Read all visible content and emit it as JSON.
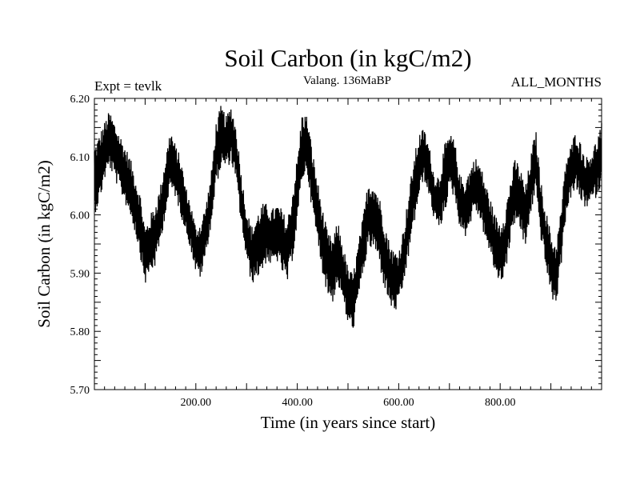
{
  "chart_data": {
    "type": "line",
    "title": "Soil Carbon (in kgC/m2)",
    "subtitle": "Valang. 136MaBP",
    "experiment_label": "Expt = tevlk",
    "period_label": "ALL_MONTHS",
    "xlabel": "Time (in years since start)",
    "ylabel": "Soil Carbon (in kgC/m2)",
    "xlim": [
      0,
      1000
    ],
    "ylim": [
      5.7,
      6.2
    ],
    "xticks": [
      200,
      400,
      600,
      800
    ],
    "xtick_labels": [
      "200.00",
      "400.00",
      "600.00",
      "800.00"
    ],
    "yticks": [
      5.7,
      5.8,
      5.9,
      6.0,
      6.1,
      6.2
    ],
    "ytick_labels": [
      "5.70",
      "5.80",
      "5.90",
      "6.00",
      "6.10",
      "6.20"
    ],
    "grid": false,
    "series": [
      {
        "name": "Soil Carbon",
        "color": "#000000",
        "x": [
          0,
          10,
          20,
          30,
          40,
          50,
          60,
          70,
          80,
          90,
          100,
          110,
          120,
          130,
          140,
          150,
          160,
          170,
          180,
          190,
          200,
          210,
          220,
          230,
          240,
          250,
          260,
          270,
          280,
          290,
          300,
          310,
          320,
          330,
          340,
          350,
          360,
          370,
          380,
          390,
          400,
          410,
          420,
          430,
          440,
          450,
          460,
          470,
          480,
          490,
          500,
          510,
          520,
          530,
          540,
          550,
          560,
          570,
          580,
          590,
          600,
          610,
          620,
          630,
          640,
          650,
          660,
          670,
          680,
          690,
          700,
          710,
          720,
          730,
          740,
          750,
          760,
          770,
          780,
          790,
          800,
          810,
          820,
          830,
          840,
          850,
          860,
          870,
          880,
          890,
          900,
          910,
          920,
          930,
          940,
          950,
          960,
          970,
          980,
          990,
          1000
        ],
        "low": [
          6.0,
          6.02,
          6.06,
          6.08,
          6.06,
          6.04,
          6.02,
          6.0,
          5.97,
          5.93,
          5.88,
          5.9,
          5.91,
          5.95,
          6.0,
          6.04,
          6.03,
          6.0,
          5.97,
          5.94,
          5.9,
          5.89,
          5.93,
          5.98,
          6.05,
          6.08,
          6.08,
          6.09,
          6.05,
          5.98,
          5.92,
          5.88,
          5.89,
          5.9,
          5.92,
          5.91,
          5.92,
          5.9,
          5.88,
          5.92,
          5.98,
          6.06,
          6.07,
          6.0,
          5.95,
          5.9,
          5.86,
          5.85,
          5.88,
          5.85,
          5.81,
          5.8,
          5.85,
          5.9,
          5.94,
          5.94,
          5.92,
          5.88,
          5.85,
          5.83,
          5.84,
          5.88,
          5.93,
          5.98,
          6.03,
          6.06,
          6.03,
          5.99,
          5.97,
          6.0,
          6.04,
          6.03,
          5.98,
          5.96,
          5.98,
          6.01,
          5.99,
          5.96,
          5.93,
          5.9,
          5.88,
          5.9,
          5.95,
          5.99,
          5.97,
          5.94,
          6.0,
          6.04,
          5.96,
          5.91,
          5.86,
          5.84,
          5.91,
          6.0,
          6.03,
          6.04,
          6.02,
          6.01,
          6.02,
          6.03,
          6.05
        ],
        "high": [
          6.12,
          6.14,
          6.16,
          6.18,
          6.16,
          6.14,
          6.12,
          6.1,
          6.07,
          6.04,
          5.98,
          6.0,
          6.02,
          6.05,
          6.1,
          6.15,
          6.12,
          6.1,
          6.05,
          6.02,
          5.98,
          5.99,
          6.02,
          6.07,
          6.16,
          6.19,
          6.17,
          6.19,
          6.15,
          6.07,
          6.01,
          5.98,
          6.0,
          6.02,
          6.02,
          6.01,
          6.02,
          6.01,
          5.99,
          6.04,
          6.1,
          6.18,
          6.17,
          6.11,
          6.06,
          6.01,
          5.97,
          5.96,
          5.99,
          5.95,
          5.91,
          5.9,
          5.95,
          6.0,
          6.06,
          6.06,
          6.04,
          6.0,
          5.96,
          5.94,
          5.94,
          5.98,
          6.04,
          6.1,
          6.14,
          6.15,
          6.12,
          6.07,
          6.07,
          6.12,
          6.14,
          6.13,
          6.07,
          6.06,
          6.08,
          6.1,
          6.09,
          6.06,
          6.03,
          6.0,
          5.99,
          6.01,
          6.06,
          6.1,
          6.08,
          6.05,
          6.1,
          6.15,
          6.06,
          6.01,
          5.97,
          5.95,
          6.01,
          6.1,
          6.12,
          6.15,
          6.12,
          6.1,
          6.11,
          6.13,
          6.16
        ]
      }
    ]
  }
}
